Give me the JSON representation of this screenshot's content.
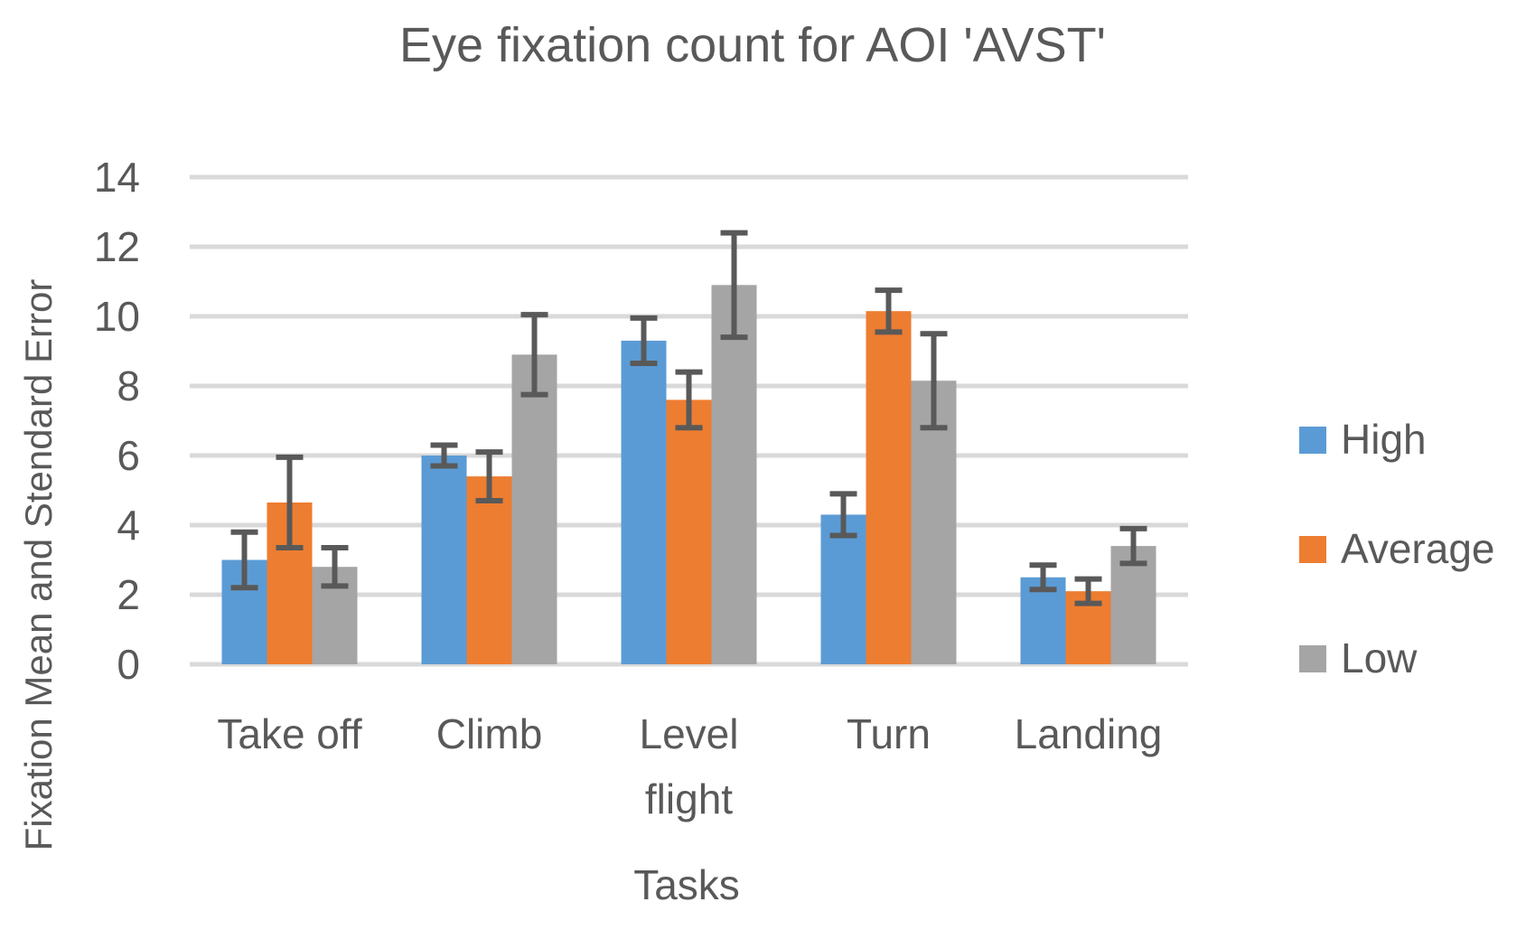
{
  "chart_data": {
    "type": "bar",
    "title": "Eye fixation count for AOI 'AVST'",
    "xlabel": "Tasks",
    "ylabel": "Fixation Mean and Stendard Error",
    "ylim": [
      0,
      14
    ],
    "yticks": [
      0,
      2,
      4,
      6,
      8,
      10,
      12,
      14
    ],
    "y_tick_labels": [
      "0",
      "2",
      "4",
      "6",
      "8",
      "10",
      "12",
      "14"
    ],
    "grid": true,
    "legend_position": "right",
    "categories": [
      [
        "Take off"
      ],
      [
        "Climb"
      ],
      [
        "Level",
        "flight"
      ],
      [
        "Turn"
      ],
      [
        "Landing"
      ]
    ],
    "series": [
      {
        "name": "High",
        "color": "#5B9BD5",
        "values": [
          3.0,
          6.0,
          9.3,
          4.3,
          2.5
        ],
        "errors": [
          0.8,
          0.3,
          0.65,
          0.6,
          0.35
        ]
      },
      {
        "name": "Average",
        "color": "#ED7D31",
        "values": [
          4.65,
          5.4,
          7.6,
          10.15,
          2.1
        ],
        "errors": [
          1.3,
          0.7,
          0.8,
          0.6,
          0.35
        ]
      },
      {
        "name": "Low",
        "color": "#A5A5A5",
        "values": [
          2.8,
          8.9,
          10.9,
          8.15,
          3.4
        ],
        "errors": [
          0.55,
          1.15,
          1.5,
          1.35,
          0.5
        ]
      }
    ],
    "error_bar_color": "#595959",
    "gridline_color": "#D9D9D9"
  }
}
